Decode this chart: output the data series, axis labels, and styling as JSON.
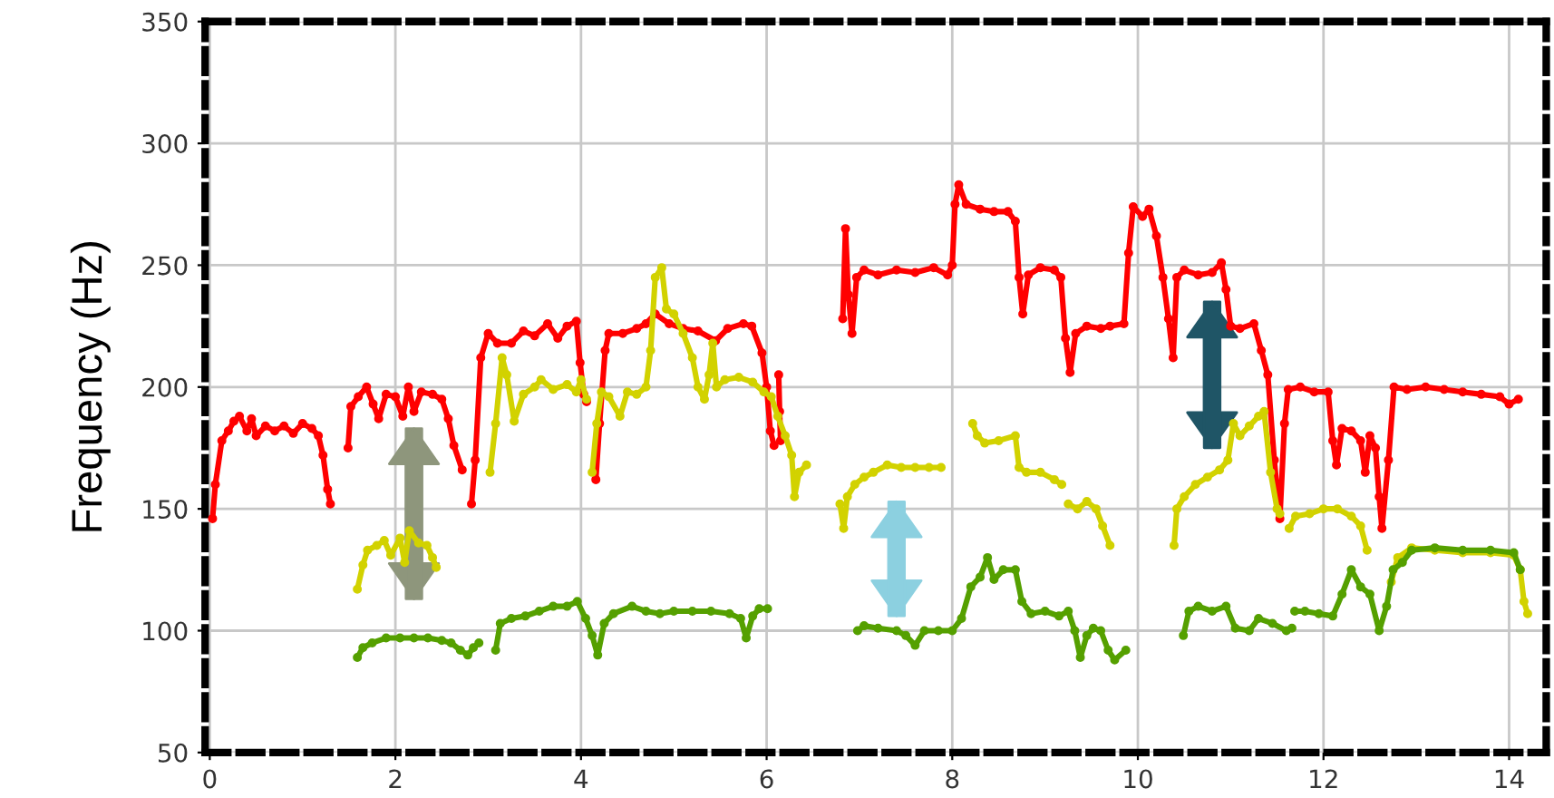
{
  "chart_data": {
    "type": "line",
    "ylabel": "Frequency (Hz)",
    "xlim": [
      -0.05,
      14.4
    ],
    "ylim": [
      50,
      350
    ],
    "xticks": [
      0,
      2,
      4,
      6,
      8,
      10,
      12,
      14
    ],
    "yticks": [
      50,
      100,
      150,
      200,
      250,
      300,
      350
    ],
    "grid": true,
    "marker": "circle",
    "line_style": "solid",
    "series": [
      {
        "color": "#ff0000",
        "x": [
          0.03,
          0.06,
          0.13,
          0.2,
          0.26,
          0.32,
          0.4,
          0.45,
          0.5,
          0.6,
          0.7,
          0.8,
          0.9,
          1.0,
          1.1,
          1.17,
          1.22,
          1.27,
          1.3,
          null,
          1.49,
          1.52,
          1.6,
          1.69,
          1.76,
          1.82,
          1.9,
          2.0,
          2.08,
          2.14,
          2.2,
          2.28,
          2.4,
          2.5,
          2.57,
          2.63,
          2.72,
          null,
          2.82,
          2.86,
          2.92,
          3.0,
          3.1,
          3.25,
          3.38,
          3.5,
          3.64,
          3.75,
          3.85,
          3.95,
          3.99,
          4.03,
          4.06,
          null,
          4.16,
          4.2,
          4.26,
          4.3,
          4.45,
          4.6,
          4.7,
          4.8,
          4.95,
          5.1,
          5.26,
          5.45,
          5.58,
          5.75,
          5.84,
          5.95,
          6.0,
          6.04,
          6.08,
          null,
          6.13,
          6.14,
          6.15,
          null,
          6.82,
          6.85,
          6.88,
          6.92,
          6.97,
          7.05,
          7.2,
          7.4,
          7.6,
          7.8,
          7.95,
          8.0,
          8.03,
          8.07,
          8.15,
          8.3,
          8.45,
          8.6,
          8.68,
          8.72,
          8.76,
          8.82,
          8.95,
          9.1,
          9.17,
          9.22,
          9.27,
          9.33,
          9.45,
          9.6,
          9.7,
          9.85,
          9.9,
          9.95,
          10.05,
          10.12,
          10.2,
          10.27,
          10.33,
          10.38,
          10.42,
          10.5,
          10.65,
          10.8,
          10.9,
          10.95,
          11.0,
          11.1,
          11.25,
          11.33,
          11.4,
          11.47,
          11.53,
          11.58,
          11.62,
          11.75,
          11.9,
          12.05,
          12.1,
          12.14,
          12.2,
          12.3,
          12.4,
          12.45,
          12.5,
          12.56,
          12.6,
          12.63,
          12.7,
          12.76,
          12.9,
          13.1,
          13.3,
          13.5,
          13.7,
          13.9,
          14.0,
          14.1
        ],
        "values": [
          146,
          160,
          178,
          182,
          186,
          188,
          182,
          187,
          180,
          184,
          182,
          184,
          181,
          185,
          183,
          180,
          172,
          158,
          152,
          null,
          175,
          192,
          196,
          200,
          193,
          187,
          197,
          196,
          188,
          200,
          190,
          198,
          197,
          195,
          187,
          176,
          166,
          null,
          152,
          170,
          212,
          222,
          218,
          218,
          223,
          221,
          226,
          220,
          225,
          227,
          210,
          197,
          194,
          null,
          162,
          185,
          215,
          222,
          222,
          224,
          226,
          230,
          226,
          224,
          223,
          219,
          224,
          226,
          225,
          214,
          200,
          182,
          176,
          null,
          205,
          190,
          178,
          null,
          228,
          265,
          238,
          222,
          245,
          248,
          246,
          248,
          247,
          249,
          246,
          250,
          275,
          283,
          275,
          273,
          272,
          272,
          268,
          245,
          230,
          246,
          249,
          248,
          245,
          220,
          206,
          222,
          225,
          224,
          225,
          226,
          255,
          274,
          270,
          273,
          262,
          245,
          228,
          212,
          245,
          248,
          246,
          247,
          251,
          240,
          225,
          224,
          226,
          215,
          205,
          170,
          146,
          185,
          199,
          200,
          198,
          198,
          178,
          168,
          183,
          182,
          178,
          165,
          180,
          175,
          155,
          142,
          170,
          200,
          199,
          200,
          199,
          198,
          197,
          196,
          193,
          195
        ]
      },
      {
        "color": "#d2d200",
        "x": [
          1.59,
          1.65,
          1.7,
          1.8,
          1.88,
          1.95,
          2.05,
          2.1,
          2.15,
          2.25,
          2.34,
          2.4,
          2.44,
          null,
          3.02,
          3.08,
          3.15,
          3.2,
          3.28,
          3.38,
          3.5,
          3.57,
          3.7,
          3.85,
          3.95,
          4.0,
          4.06,
          null,
          4.12,
          4.17,
          4.22,
          4.3,
          4.42,
          4.5,
          4.6,
          4.7,
          4.75,
          4.8,
          4.87,
          4.92,
          5.0,
          5.1,
          5.2,
          5.26,
          5.33,
          5.38,
          5.42,
          5.46,
          5.55,
          5.7,
          5.85,
          5.97,
          6.05,
          6.12,
          6.2,
          6.27,
          6.3,
          6.35,
          6.43,
          null,
          6.79,
          6.83,
          6.87,
          6.95,
          7.05,
          7.15,
          7.3,
          7.45,
          7.6,
          7.75,
          7.88,
          null,
          8.22,
          8.27,
          8.35,
          8.5,
          8.68,
          8.72,
          8.8,
          8.95,
          9.1,
          9.18,
          null,
          9.25,
          9.35,
          9.45,
          9.55,
          9.62,
          9.7,
          null,
          10.39,
          10.42,
          10.5,
          10.62,
          10.75,
          10.88,
          10.97,
          11.03,
          11.1,
          11.2,
          11.3,
          11.36,
          11.43,
          11.5,
          11.53,
          null,
          11.63,
          11.7,
          11.85,
          12.0,
          12.15,
          12.3,
          12.4,
          12.47,
          null,
          12.73,
          12.8,
          12.95,
          13.2,
          13.5,
          13.8,
          14.05,
          14.12,
          14.16,
          14.2
        ],
        "values": [
          117,
          127,
          133,
          135,
          137,
          131,
          138,
          128,
          141,
          136,
          135,
          130,
          126,
          null,
          165,
          185,
          212,
          205,
          186,
          197,
          200,
          203,
          199,
          201,
          198,
          203,
          195,
          null,
          165,
          185,
          198,
          196,
          188,
          198,
          197,
          200,
          215,
          245,
          249,
          232,
          230,
          222,
          212,
          200,
          195,
          205,
          218,
          200,
          203,
          204,
          202,
          198,
          196,
          188,
          180,
          172,
          155,
          165,
          168,
          null,
          152,
          142,
          155,
          160,
          163,
          165,
          168,
          167,
          167,
          167,
          167,
          null,
          185,
          180,
          177,
          178,
          180,
          167,
          165,
          165,
          162,
          160,
          null,
          152,
          150,
          153,
          150,
          143,
          135,
          null,
          135,
          150,
          155,
          160,
          163,
          166,
          170,
          185,
          180,
          184,
          188,
          190,
          165,
          150,
          148,
          null,
          142,
          147,
          148,
          150,
          150,
          147,
          143,
          133,
          null,
          120,
          130,
          134,
          133,
          132,
          132,
          131,
          125,
          112,
          107
        ]
      },
      {
        "color": "#55a000",
        "x": [
          1.59,
          1.65,
          1.75,
          1.9,
          2.05,
          2.2,
          2.35,
          2.5,
          2.6,
          2.7,
          2.78,
          2.84,
          2.9,
          null,
          3.08,
          3.13,
          3.25,
          3.4,
          3.55,
          3.7,
          3.85,
          3.96,
          4.05,
          4.12,
          4.18,
          4.25,
          4.35,
          4.55,
          4.7,
          4.85,
          5.0,
          5.2,
          5.4,
          5.6,
          5.72,
          5.78,
          5.85,
          5.92,
          6.01,
          null,
          6.98,
          7.05,
          7.2,
          7.4,
          7.5,
          7.6,
          7.7,
          7.85,
          8.0,
          8.1,
          8.2,
          8.3,
          8.38,
          8.45,
          8.55,
          8.68,
          8.75,
          8.85,
          9.0,
          9.15,
          9.25,
          9.32,
          9.38,
          9.45,
          9.52,
          9.6,
          9.68,
          9.75,
          9.87,
          null,
          10.49,
          10.55,
          10.65,
          10.8,
          10.95,
          11.05,
          11.2,
          11.3,
          11.45,
          11.6,
          11.66,
          null,
          11.69,
          11.8,
          11.95,
          12.1,
          12.2,
          12.3,
          12.4,
          12.5,
          12.6,
          12.68,
          12.75,
          12.85,
          12.95,
          13.2,
          13.5,
          13.8,
          14.05,
          14.12
        ],
        "values": [
          89,
          93,
          95,
          97,
          97,
          97,
          97,
          96,
          95,
          92,
          90,
          93,
          95,
          null,
          92,
          103,
          105,
          106,
          108,
          110,
          110,
          112,
          105,
          98,
          90,
          103,
          107,
          110,
          108,
          107,
          108,
          108,
          108,
          107,
          105,
          97,
          106,
          109,
          109,
          null,
          100,
          102,
          101,
          100,
          98,
          94,
          100,
          100,
          100,
          105,
          118,
          122,
          130,
          121,
          125,
          125,
          112,
          107,
          108,
          106,
          108,
          100,
          89,
          98,
          101,
          100,
          92,
          88,
          92,
          null,
          98,
          108,
          110,
          108,
          110,
          101,
          100,
          105,
          103,
          100,
          101,
          null,
          108,
          108,
          107,
          106,
          115,
          125,
          118,
          115,
          100,
          110,
          125,
          128,
          133,
          134,
          133,
          133,
          132,
          125
        ]
      }
    ]
  }
}
